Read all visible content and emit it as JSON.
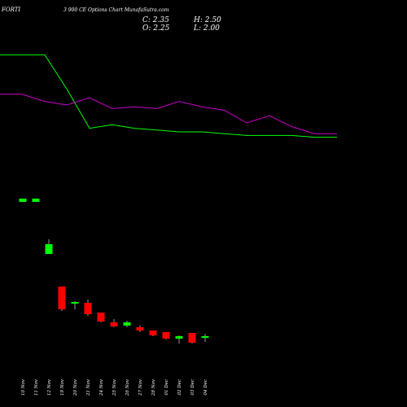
{
  "header": {
    "symbol": "FORTI",
    "subtitle": "3 900  CE Options  Chart MunafaSutra.com",
    "open": "O: 2.25",
    "close": "C: 2.35",
    "high": "H: 2.50",
    "low": "L: 2.00"
  },
  "chart_data": {
    "type": "candlestick",
    "x_labels": [
      "10 Nov",
      "11 Nov",
      "12 Nov",
      "19 Nov",
      "20 Nov",
      "21 Nov",
      "24 Nov",
      "25 Nov",
      "26 Nov",
      "27 Nov",
      "28 Nov",
      "01 Dec",
      "02 Dec",
      "03 Dec",
      "04 Dec"
    ],
    "ylim": [
      0,
      20
    ],
    "colors": {
      "up": "#00ff00",
      "down": "#ff0000",
      "background": "#000000",
      "green_line": "#00ff00",
      "magenta_line": "#cc00cc"
    },
    "candles": [
      {
        "date": "10 Nov",
        "open": 10.6,
        "high": 10.8,
        "low": 10.6,
        "close": 10.8,
        "dir": "up"
      },
      {
        "date": "11 Nov",
        "open": 10.6,
        "high": 10.8,
        "low": 10.6,
        "close": 10.8,
        "dir": "up"
      },
      {
        "date": "12 Nov",
        "open": 7.4,
        "high": 8.3,
        "low": 7.4,
        "close": 8.0,
        "dir": "up"
      },
      {
        "date": "19 Nov",
        "open": 5.4,
        "high": 5.4,
        "low": 3.9,
        "close": 4.0,
        "dir": "down"
      },
      {
        "date": "20 Nov",
        "open": 4.35,
        "high": 4.5,
        "low": 4.0,
        "close": 4.45,
        "dir": "up"
      },
      {
        "date": "21 Nov",
        "open": 4.4,
        "high": 4.6,
        "low": 3.6,
        "close": 3.7,
        "dir": "down"
      },
      {
        "date": "24 Nov",
        "open": 3.8,
        "high": 3.8,
        "low": 3.2,
        "close": 3.25,
        "dir": "down"
      },
      {
        "date": "25 Nov",
        "open": 3.2,
        "high": 3.4,
        "low": 2.9,
        "close": 2.95,
        "dir": "down"
      },
      {
        "date": "26 Nov",
        "open": 3.0,
        "high": 3.3,
        "low": 2.9,
        "close": 3.2,
        "dir": "up"
      },
      {
        "date": "27 Nov",
        "open": 2.9,
        "high": 3.0,
        "low": 2.6,
        "close": 2.7,
        "dir": "down"
      },
      {
        "date": "28 Nov",
        "open": 2.7,
        "high": 2.7,
        "low": 2.35,
        "close": 2.4,
        "dir": "down"
      },
      {
        "date": "01 Dec",
        "open": 2.6,
        "high": 2.6,
        "low": 2.15,
        "close": 2.2,
        "dir": "down"
      },
      {
        "date": "02 Dec",
        "open": 2.2,
        "high": 2.4,
        "low": 1.9,
        "close": 2.35,
        "dir": "up"
      },
      {
        "date": "03 Dec",
        "open": 2.55,
        "high": 2.55,
        "low": 1.9,
        "close": 1.95,
        "dir": "down"
      },
      {
        "date": "04 Dec",
        "open": 2.25,
        "high": 2.5,
        "low": 2.0,
        "close": 2.35,
        "dir": "up"
      }
    ],
    "series": [
      {
        "color": "#00ff00",
        "points": [
          [
            0,
            0.83
          ],
          [
            27,
            0.83
          ],
          [
            55,
            0.83
          ],
          [
            82,
            0.64
          ],
          [
            110,
            0.42
          ],
          [
            138,
            0.44
          ],
          [
            165,
            0.42
          ],
          [
            193,
            0.41
          ],
          [
            220,
            0.4
          ],
          [
            248,
            0.4
          ],
          [
            276,
            0.39
          ],
          [
            303,
            0.38
          ],
          [
            331,
            0.38
          ],
          [
            358,
            0.38
          ],
          [
            386,
            0.37
          ],
          [
            414,
            0.37
          ]
        ]
      },
      {
        "color": "#cc00cc",
        "points": [
          [
            0,
            0.61
          ],
          [
            27,
            0.61
          ],
          [
            55,
            0.57
          ],
          [
            82,
            0.55
          ],
          [
            110,
            0.59
          ],
          [
            138,
            0.53
          ],
          [
            165,
            0.54
          ],
          [
            193,
            0.53
          ],
          [
            220,
            0.57
          ],
          [
            248,
            0.54
          ],
          [
            276,
            0.52
          ],
          [
            303,
            0.45
          ],
          [
            331,
            0.49
          ],
          [
            358,
            0.43
          ],
          [
            386,
            0.39
          ],
          [
            414,
            0.39
          ]
        ]
      }
    ]
  }
}
